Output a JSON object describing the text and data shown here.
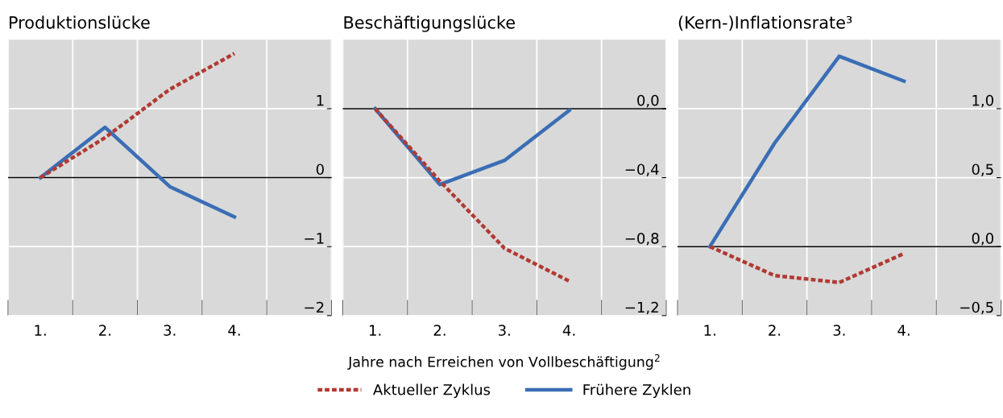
{
  "chart_data": [
    {
      "type": "line",
      "title": "Produktionslücke",
      "categories": [
        "1.",
        "2.",
        "3.",
        "4.",
        null
      ],
      "ylim": [
        -2,
        2
      ],
      "yticks": [
        {
          "value": -2,
          "label": "−2"
        },
        {
          "value": -1,
          "label": "−1"
        },
        0,
        1
      ],
      "grid": true,
      "legend": false,
      "ref_lines": [
        {
          "axis": "y",
          "value": 0,
          "color": "#000000"
        }
      ],
      "series": [
        {
          "color": "#b03a32",
          "line_style": "dashed",
          "values": [
            0,
            0.58,
            1.28,
            1.8,
            null
          ]
        },
        {
          "color": "#3a6eb5",
          "line_style": "solid",
          "values": [
            0,
            0.73,
            -0.13,
            -0.57,
            null
          ]
        }
      ]
    },
    {
      "type": "line",
      "title": "Beschäftigungslücke",
      "xlabel": "Jahre nach Erreichen von Vollbeschäftigung$^{2}$",
      "categories": [
        "1.",
        "2.",
        "3.",
        "4.",
        null
      ],
      "ylim": [
        -1.2,
        0.4
      ],
      "yticks": [
        {
          "value": -1.2,
          "label": "−1,2"
        },
        {
          "value": -0.8,
          "label": "−0,8"
        },
        {
          "value": -0.4,
          "label": "−0,4"
        },
        {
          "value": 0,
          "label": "0,0"
        }
      ],
      "grid": true,
      "legend": "bottom",
      "ref_lines": [
        {
          "axis": "y",
          "value": 0,
          "color": "#000000"
        }
      ],
      "series": [
        {
          "name": "Aktueller Zyklus",
          "color": "#b03a32",
          "line_style": "dashed",
          "values": [
            0,
            -0.42,
            -0.81,
            -1.0,
            null
          ]
        },
        {
          "name": "Frühere Zyklen",
          "color": "#3a6eb5",
          "line_style": "solid",
          "values": [
            0,
            -0.44,
            -0.3,
            -0.01,
            null
          ]
        }
      ]
    },
    {
      "type": "line",
      "title": "(Kern-)Inflationsrate³",
      "categories": [
        "1.",
        "2.",
        "3.",
        "4.",
        null
      ],
      "ylim": [
        -0.5,
        1.5
      ],
      "yticks": [
        {
          "value": -0.5,
          "label": "−0,5"
        },
        {
          "value": 0,
          "label": "0,0"
        },
        {
          "value": 0.5,
          "label": "0,5"
        },
        {
          "value": 1,
          "label": "1,0"
        }
      ],
      "grid": true,
      "legend": false,
      "ref_lines": [
        {
          "axis": "y",
          "value": 0,
          "color": "#000000"
        }
      ],
      "series": [
        {
          "color": "#b03a32",
          "line_style": "dashed",
          "values": [
            0,
            -0.21,
            -0.26,
            -0.05,
            null
          ]
        },
        {
          "color": "#3a6eb5",
          "line_style": "solid",
          "values": [
            0,
            0.75,
            1.38,
            1.2,
            null
          ]
        }
      ]
    }
  ]
}
